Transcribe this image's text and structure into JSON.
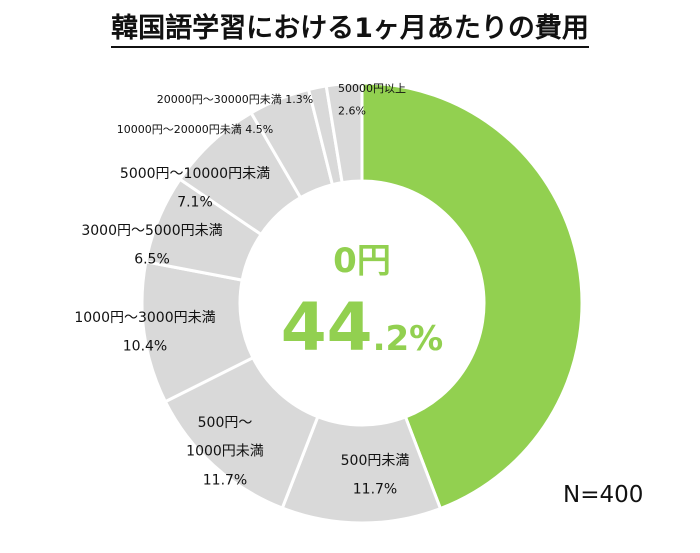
{
  "title": "韓国語学習における1ヶ月あたりの費用",
  "sample_size": "N=400",
  "center": {
    "label": "0円",
    "value_main": "44",
    "value_decimal": ".2%"
  },
  "colors": {
    "highlight": "#92d050",
    "other": "#d9d9d9",
    "separator": "#ffffff",
    "center_text": "#92d050"
  },
  "chart_data": {
    "type": "pie",
    "title": "韓国語学習における1ヶ月あたりの費用",
    "categories": [
      "0円",
      "500円未満",
      "500円〜1000円未満",
      "1000円〜3000円未満",
      "3000円〜5000円未満",
      "5000円〜10000円未満",
      "10000円〜20000円未満",
      "20000円〜30000円未満",
      "50000円以上"
    ],
    "values": [
      44.2,
      11.7,
      11.7,
      10.4,
      6.5,
      7.1,
      4.5,
      1.3,
      2.6
    ],
    "unit": "%",
    "labels": [
      {
        "lines": [],
        "size": 14
      },
      {
        "lines": [
          "500円未満",
          "11.7%"
        ],
        "size": 14
      },
      {
        "lines": [
          "500円〜",
          "1000円未満",
          "11.7%"
        ],
        "size": 14
      },
      {
        "lines": [
          "1000円〜3000円未満",
          "10.4%"
        ],
        "size": 14
      },
      {
        "lines": [
          "3000円〜5000円未満",
          "6.5%"
        ],
        "size": 14
      },
      {
        "lines": [
          "5000円〜10000円未満",
          "7.1%"
        ],
        "size": 14
      },
      {
        "lines": [
          "10000円〜20000円未満 4.5%"
        ],
        "size": 11
      },
      {
        "lines": [
          "20000円〜30000円未満 1.3%"
        ],
        "size": 11
      },
      {
        "lines": [
          "50000円以上",
          "2.6%"
        ],
        "size": 11
      }
    ]
  }
}
